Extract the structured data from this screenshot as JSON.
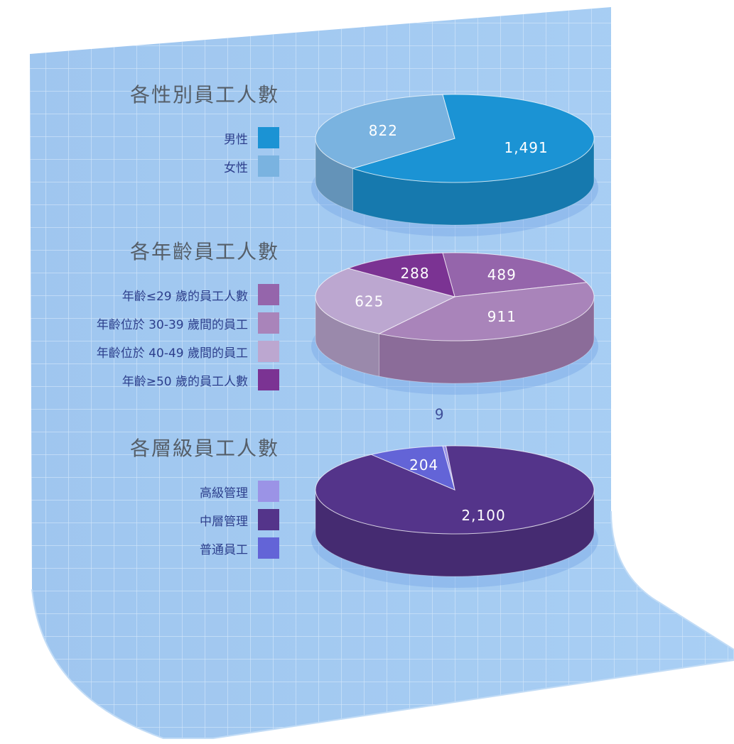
{
  "colors": {
    "panel": "#a7cdf2",
    "grid": "#d6e8fa"
  },
  "chart_data": [
    {
      "type": "pie",
      "title": "各性別員工人數",
      "categories": [
        "男性",
        "女性"
      ],
      "values": [
        1491,
        822
      ],
      "value_labels": [
        "1,491",
        "822"
      ],
      "colors": [
        "#1b93d4",
        "#7ab3e0"
      ],
      "legend": "left"
    },
    {
      "type": "pie",
      "title": "各年齡員工人數",
      "categories": [
        "年齡≤29 歲的員工人數",
        "年齡位於 30-39 歲間的員工",
        "年齡位於 40-49 歲間的員工",
        "年齡≥50 歲的員工人數"
      ],
      "values": [
        489,
        911,
        625,
        288
      ],
      "value_labels": [
        "489",
        "911",
        "625",
        "288"
      ],
      "colors": [
        "#9565ab",
        "#a984ba",
        "#bca7d0",
        "#7b3393"
      ],
      "legend": "left"
    },
    {
      "type": "pie",
      "title": "各層級員工人數",
      "categories": [
        "高級管理",
        "中層管理",
        "普通員工"
      ],
      "values": [
        9,
        2100,
        204
      ],
      "value_labels": [
        "9",
        "2,100",
        "204"
      ],
      "colors": [
        "#9b93e6",
        "#54348a",
        "#6364d7"
      ],
      "legend": "left"
    }
  ]
}
